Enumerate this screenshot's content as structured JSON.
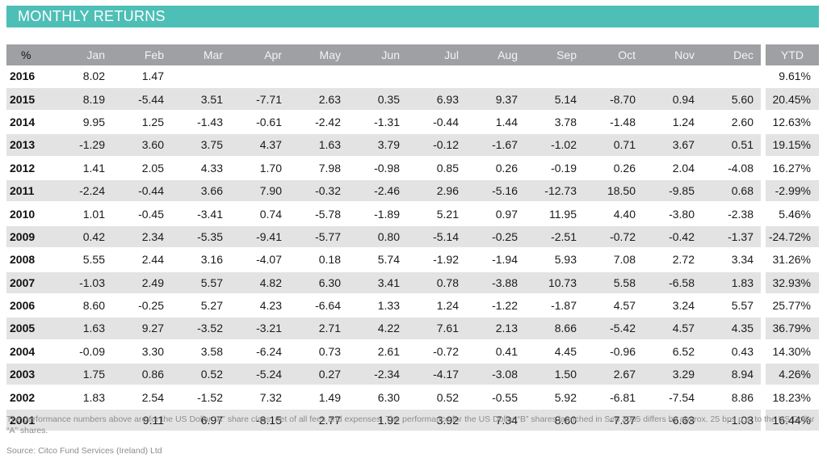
{
  "banner": {
    "title": "MONTHLY RETURNS"
  },
  "table": {
    "headers": [
      "%",
      "Jan",
      "Feb",
      "Mar",
      "Apr",
      "May",
      "Jun",
      "Jul",
      "Aug",
      "Sep",
      "Oct",
      "Nov",
      "Dec",
      "YTD"
    ],
    "rows": [
      [
        "2016",
        "8.02",
        "1.47",
        "",
        "",
        "",
        "",
        "",
        "",
        "",
        "",
        "",
        "",
        "9.61%"
      ],
      [
        "2015",
        "8.19",
        "-5.44",
        "3.51",
        "-7.71",
        "2.63",
        "0.35",
        "6.93",
        "9.37",
        "5.14",
        "-8.70",
        "0.94",
        "5.60",
        "20.45%"
      ],
      [
        "2014",
        "9.95",
        "1.25",
        "-1.43",
        "-0.61",
        "-2.42",
        "-1.31",
        "-0.44",
        "1.44",
        "3.78",
        "-1.48",
        "1.24",
        "2.60",
        "12.63%"
      ],
      [
        "2013",
        "-1.29",
        "3.60",
        "3.75",
        "4.37",
        "1.63",
        "3.79",
        "-0.12",
        "-1.67",
        "-1.02",
        "0.71",
        "3.67",
        "0.51",
        "19.15%"
      ],
      [
        "2012",
        "1.41",
        "2.05",
        "4.33",
        "1.70",
        "7.98",
        "-0.98",
        "0.85",
        "0.26",
        "-0.19",
        "0.26",
        "2.04",
        "-4.08",
        "16.27%"
      ],
      [
        "2011",
        "-2.24",
        "-0.44",
        "3.66",
        "7.90",
        "-0.32",
        "-2.46",
        "2.96",
        "-5.16",
        "-12.73",
        "18.50",
        "-9.85",
        "0.68",
        "-2.99%"
      ],
      [
        "2010",
        "1.01",
        "-0.45",
        "-3.41",
        "0.74",
        "-5.78",
        "-1.89",
        "5.21",
        "0.97",
        "11.95",
        "4.40",
        "-3.80",
        "-2.38",
        "5.46%"
      ],
      [
        "2009",
        "0.42",
        "2.34",
        "-5.35",
        "-9.41",
        "-5.77",
        "0.80",
        "-5.14",
        "-0.25",
        "-2.51",
        "-0.72",
        "-0.42",
        "-1.37",
        "-24.72%"
      ],
      [
        "2008",
        "5.55",
        "2.44",
        "3.16",
        "-4.07",
        "0.18",
        "5.74",
        "-1.92",
        "-1.94",
        "5.93",
        "7.08",
        "2.72",
        "3.34",
        "31.26%"
      ],
      [
        "2007",
        "-1.03",
        "2.49",
        "5.57",
        "4.82",
        "6.30",
        "3.41",
        "0.78",
        "-3.88",
        "10.73",
        "5.58",
        "-6.58",
        "1.83",
        "32.93%"
      ],
      [
        "2006",
        "8.60",
        "-0.25",
        "5.27",
        "4.23",
        "-6.64",
        "1.33",
        "1.24",
        "-1.22",
        "-1.87",
        "4.57",
        "3.24",
        "5.57",
        "25.77%"
      ],
      [
        "2005",
        "1.63",
        "9.27",
        "-3.52",
        "-3.21",
        "2.71",
        "4.22",
        "7.61",
        "2.13",
        "8.66",
        "-5.42",
        "4.57",
        "4.35",
        "36.79%"
      ],
      [
        "2004",
        "-0.09",
        "3.30",
        "3.58",
        "-6.24",
        "0.73",
        "2.61",
        "-0.72",
        "0.41",
        "4.45",
        "-0.96",
        "6.52",
        "0.43",
        "14.30%"
      ],
      [
        "2003",
        "1.75",
        "0.86",
        "0.52",
        "-5.24",
        "0.27",
        "-2.34",
        "-4.17",
        "-3.08",
        "1.50",
        "2.67",
        "3.29",
        "8.94",
        "4.26%"
      ],
      [
        "2002",
        "1.83",
        "2.54",
        "-1.52",
        "7.32",
        "1.49",
        "6.30",
        "0.52",
        "-0.55",
        "5.92",
        "-6.81",
        "-7.54",
        "8.86",
        "18.23%"
      ],
      [
        "2001",
        "",
        "9.11",
        "6.97",
        "-8.15",
        "2.77",
        "1.92",
        "3.92",
        "7.34",
        "8.60",
        "-7.37",
        "-6.63",
        "-1.03",
        "16.44%"
      ]
    ]
  },
  "footer": {
    "note": "The performance numbers above are for the US Dollar “A” share class, net of all fees and expenses. The performance for the US Dollar “B” shares launched in Sep 2005 differs by approx. 25 bps p.a. to the US Dollar “A” shares.",
    "source": "Source: Citco Fund Services (Ireland) Ltd"
  },
  "colors": {
    "banner": "#4dbfb6",
    "header": "#9ea0a3",
    "stripe": "#e3e3e4"
  }
}
